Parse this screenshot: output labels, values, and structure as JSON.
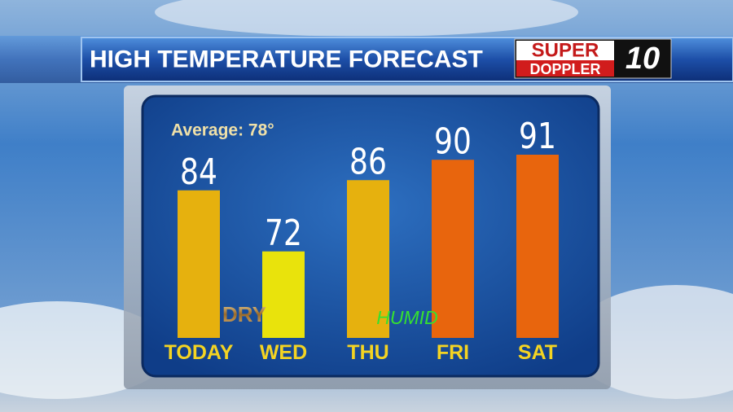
{
  "chart_data": {
    "type": "bar",
    "title": "HIGH TEMPERATURE FORECAST",
    "logo": {
      "top": "SUPER",
      "bottom": "DOPPLER",
      "number": "10"
    },
    "annotations": {
      "average": "Average: 78°",
      "dry": "DRY",
      "humid": "HUMID"
    },
    "categories": [
      "TODAY",
      "WED",
      "THU",
      "FRI",
      "SAT"
    ],
    "values": [
      84,
      72,
      86,
      90,
      91
    ],
    "colors": [
      "#e6b10e",
      "#e9e30c",
      "#e6b10e",
      "#e8650d",
      "#e8650d"
    ],
    "ylim": [
      55,
      95
    ]
  }
}
